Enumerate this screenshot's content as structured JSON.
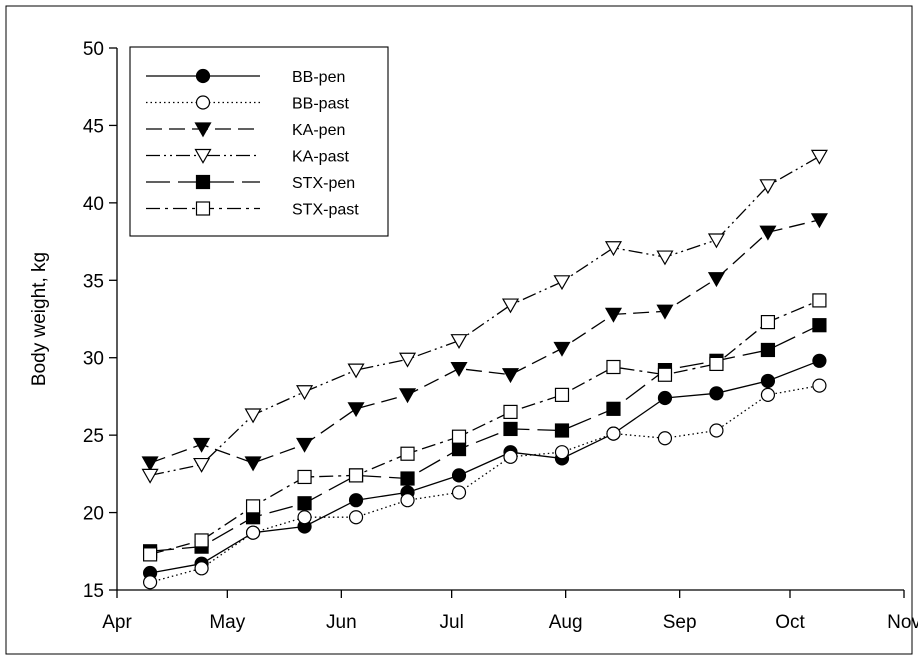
{
  "chart_data": {
    "type": "line",
    "title": "",
    "xlabel": "",
    "ylabel": "Body weight, kg",
    "x_ticks": [
      "Apr",
      "May",
      "Jun",
      "Jul",
      "Aug",
      "Sep",
      "Oct",
      "Nov"
    ],
    "x_dates": [
      "2000-04-10",
      "2000-04-24",
      "2000-05-08",
      "2000-05-22",
      "2000-06-05",
      "2000-06-19",
      "2000-07-03",
      "2000-07-17",
      "2000-07-31",
      "2000-08-14",
      "2000-08-28",
      "2000-09-11",
      "2000-09-25",
      "2000-10-09"
    ],
    "xlim": [
      "Apr",
      "Nov"
    ],
    "ylim": [
      15,
      50
    ],
    "y_ticks": [
      15,
      20,
      25,
      30,
      35,
      40,
      45,
      50
    ],
    "grid": false,
    "legend_position": "top-left",
    "series": [
      {
        "name": "BB-pen",
        "marker": "circle-filled",
        "dash": "solid",
        "values": [
          16.1,
          16.7,
          18.7,
          19.1,
          20.8,
          21.3,
          22.4,
          23.9,
          23.5,
          25.1,
          27.4,
          27.7,
          28.5,
          29.8
        ]
      },
      {
        "name": "BB-past",
        "marker": "circle-open",
        "dash": "dotted",
        "values": [
          15.5,
          16.4,
          18.7,
          19.7,
          19.7,
          20.8,
          21.3,
          23.6,
          23.9,
          25.1,
          24.8,
          25.3,
          27.6,
          28.2
        ]
      },
      {
        "name": "KA-pen",
        "marker": "triangle-down-filled",
        "dash": "dashed",
        "values": [
          23.2,
          24.4,
          23.2,
          24.4,
          26.7,
          27.6,
          29.3,
          28.9,
          30.6,
          32.8,
          33.0,
          35.1,
          38.1,
          38.9
        ]
      },
      {
        "name": "KA-past",
        "marker": "triangle-down-open",
        "dash": "dash-dot-dot",
        "values": [
          22.4,
          23.1,
          26.3,
          27.8,
          29.2,
          29.9,
          31.1,
          33.4,
          34.9,
          37.1,
          36.5,
          37.6,
          41.1,
          43.0
        ]
      },
      {
        "name": "STX-pen",
        "marker": "square-filled",
        "dash": "long-dash",
        "values": [
          17.5,
          17.8,
          19.7,
          20.6,
          22.4,
          22.2,
          24.1,
          25.4,
          25.3,
          26.7,
          29.2,
          29.8,
          30.5,
          32.1
        ]
      },
      {
        "name": "STX-past",
        "marker": "square-open",
        "dash": "dash-dot",
        "values": [
          17.3,
          18.2,
          20.4,
          22.3,
          22.4,
          23.8,
          24.9,
          26.5,
          27.6,
          29.4,
          28.9,
          29.6,
          32.3,
          33.7
        ]
      }
    ]
  }
}
